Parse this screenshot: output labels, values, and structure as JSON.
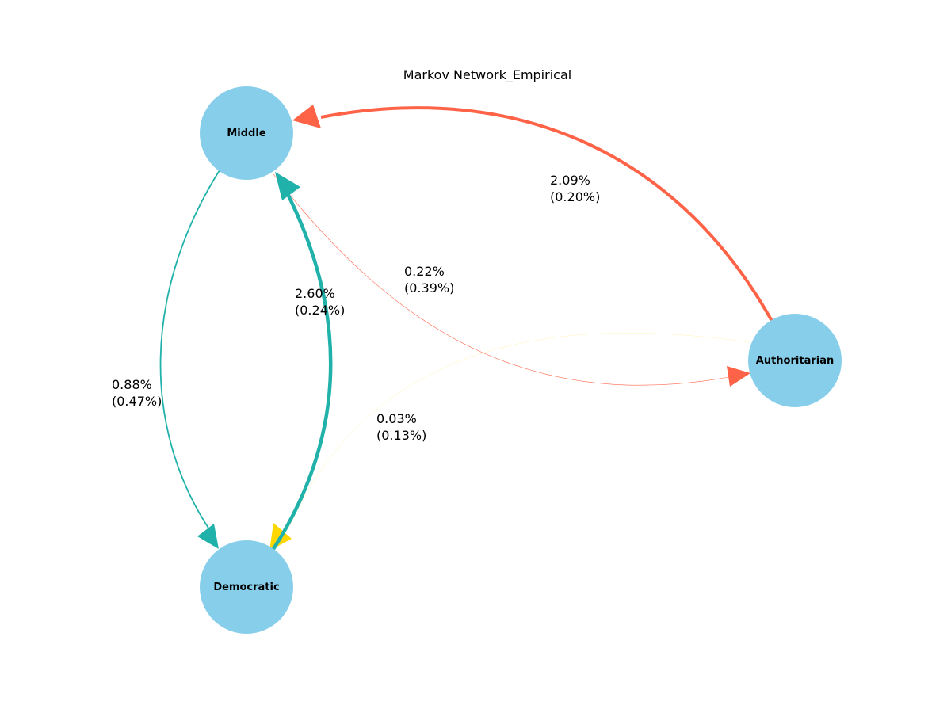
{
  "title": "Markov Network_Empirical",
  "nodes": [
    {
      "id": "middle",
      "label": "Middle"
    },
    {
      "id": "democratic",
      "label": "Democratic"
    },
    {
      "id": "authoritarian",
      "label": "Authoritarian"
    }
  ],
  "edges": [
    {
      "id": "authoritarian-to-middle",
      "from": "Authoritarian",
      "to": "Middle",
      "value": "2.09%",
      "sd": "(0.20%)",
      "color": "#FF6347"
    },
    {
      "id": "middle-to-authoritarian",
      "from": "Middle",
      "to": "Authoritarian",
      "value": "0.22%",
      "sd": "(0.39%)",
      "color": "#FF6347"
    },
    {
      "id": "democratic-to-middle",
      "from": "Democratic",
      "to": "Middle",
      "value": "2.60%",
      "sd": "(0.24%)",
      "color": "#20B2AA"
    },
    {
      "id": "middle-to-democratic",
      "from": "Middle",
      "to": "Democratic",
      "value": "0.88%",
      "sd": "(0.47%)",
      "color": "#20B2AA"
    },
    {
      "id": "authoritarian-to-democratic",
      "from": "Authoritarian",
      "to": "Democratic",
      "value": "0.03%",
      "sd": "(0.13%)",
      "color": "#FFD700"
    }
  ],
  "colors": {
    "node_fill": "#87CEEB",
    "background": "#FFFFFF"
  }
}
